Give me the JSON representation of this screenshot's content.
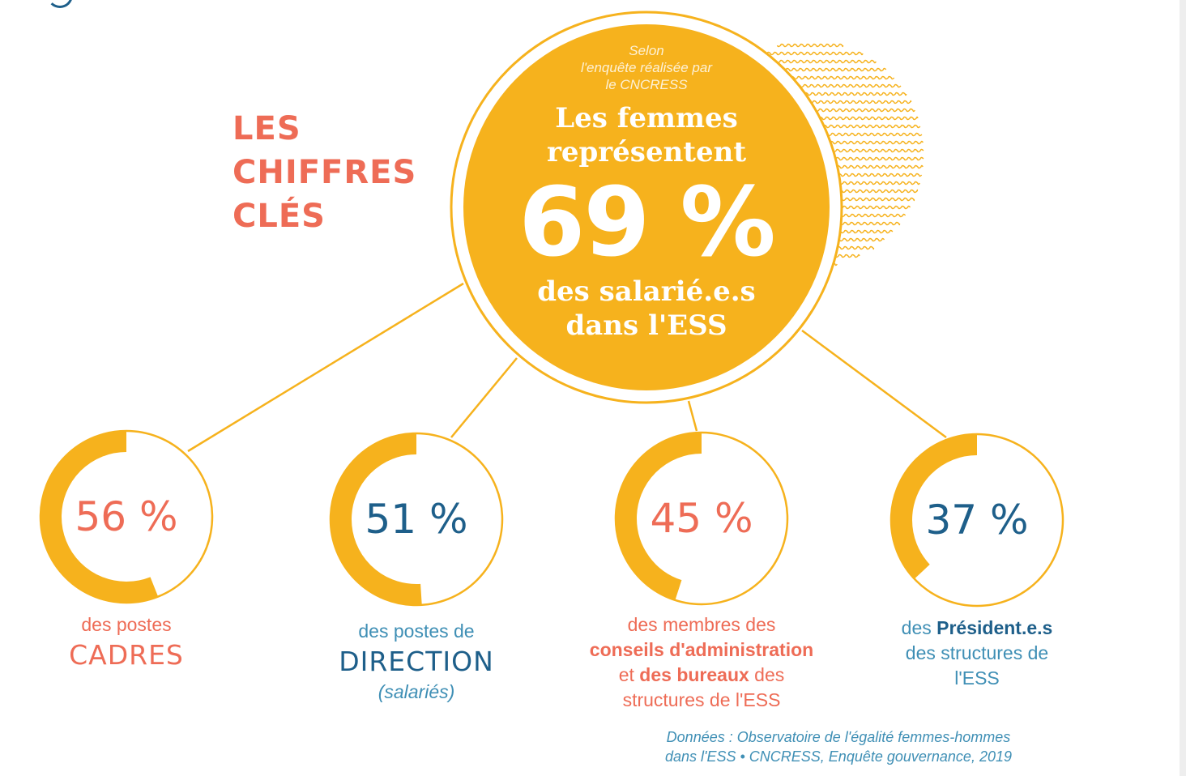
{
  "colors": {
    "orange": "#f6b21d",
    "coral": "#ee6c56",
    "navy": "#1e5f8a",
    "caption_blue": "#3f8fb5",
    "white": "#ffffff"
  },
  "heading": {
    "lines": [
      "LES",
      "CHIFFRES",
      "CLÉS"
    ]
  },
  "hero": {
    "survey_lines": [
      "Selon",
      "l'enquête réalisée par",
      "le CNCRESS"
    ],
    "lead_lines": [
      "Les femmes",
      "représentent"
    ],
    "value": "69 %",
    "value_fraction": 0.69,
    "tail_lines": [
      "des salarié.e.s",
      "dans l'ESS"
    ]
  },
  "stats": [
    {
      "value": "56 %",
      "fraction": 0.56,
      "value_color": "#ee6c56",
      "caption_html": "<span style=\"color:#ee6c56\">des postes</span><br><span style=\"color:#ee6c56;font-family:'DejaVu Sans',sans-serif;font-size:33px;line-height:44px;letter-spacing:1px\">CADRES</span>"
    },
    {
      "value": "51 %",
      "fraction": 0.51,
      "value_color": "#1e5f8a",
      "caption_html": "<span style=\"color:#3f8fb5\">des postes de</span><br><span style=\"color:#1e5f8a;font-family:'DejaVu Sans',sans-serif;font-size:33px;line-height:44px;letter-spacing:1px\">DIRECTION</span><br><span style=\"color:#3f8fb5;font-style:italic\">(salariés)</span>"
    },
    {
      "value": "45 %",
      "fraction": 0.45,
      "value_color": "#ee6c56",
      "caption_html": "<span style=\"color:#ee6c56\">des membres des</span><br><b style=\"color:#ee6c56\">conseils d'administration</b><br><span style=\"color:#ee6c56\">et </span><b style=\"color:#ee6c56\">des bureaux</b><span style=\"color:#ee6c56\"> des</span><br><span style=\"color:#ee6c56\">structures de l'ESS</span>"
    },
    {
      "value": "37 %",
      "fraction": 0.37,
      "value_color": "#1e5f8a",
      "caption_html": "<span style=\"color:#3f8fb5\">des </span><b style=\"color:#1e5f8a\">Président.e.s</b><br><span style=\"color:#3f8fb5\">des structures de</span><br><span style=\"color:#3f8fb5\">l'ESS</span>"
    }
  ],
  "source_lines": [
    "Données : Observatoire de l'égalité femmes-hommes",
    "dans l'ESS • CNCRESS, Enquête gouvernance, 2019"
  ]
}
